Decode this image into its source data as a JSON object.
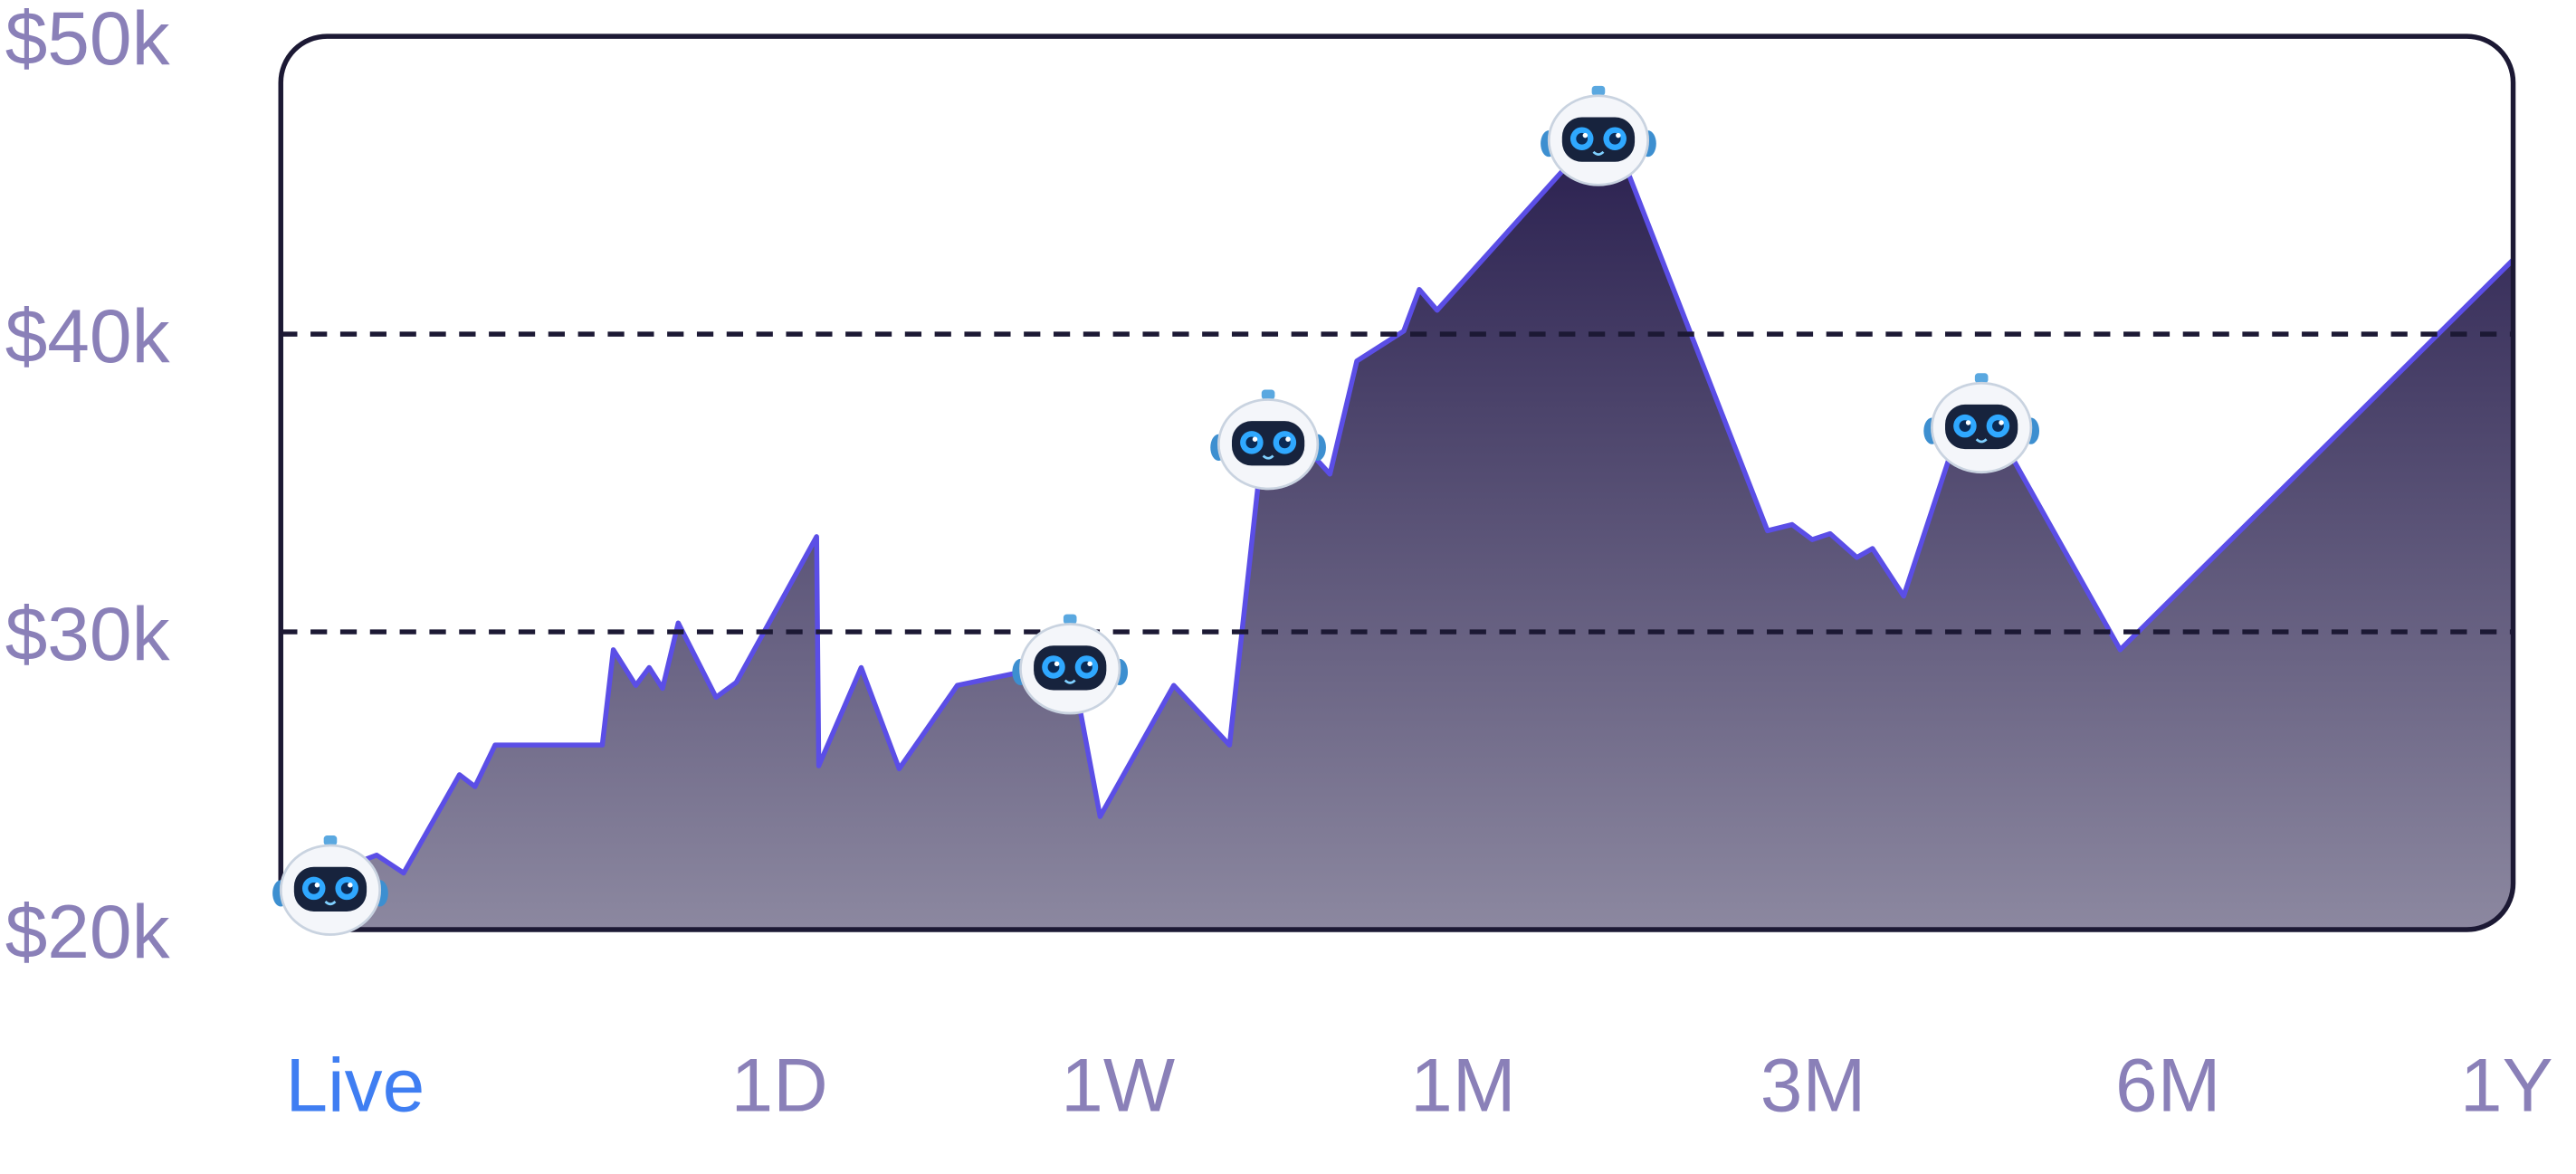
{
  "chart_data": {
    "type": "area",
    "x": [
      0,
      4.3,
      5.5,
      8.0,
      8.7,
      9.6,
      14.4,
      14.9,
      15.9,
      16.5,
      17.1,
      17.8,
      19.5,
      20.4,
      24.0,
      24.1,
      26.0,
      27.7,
      30.3,
      35.4,
      36.7,
      40.0,
      42.5,
      43.8,
      45.9,
      47.0,
      48.2,
      50.3,
      51.0,
      51.8,
      58.4,
      59.9,
      66.6,
      67.7,
      68.6,
      69.4,
      70.6,
      71.3,
      72.7,
      74.9,
      77.3,
      82.4,
      100
    ],
    "values": [
      21300,
      22500,
      21900,
      25200,
      24800,
      26200,
      26200,
      29400,
      28200,
      28800,
      28100,
      30300,
      27800,
      28300,
      33200,
      25500,
      28800,
      25400,
      28200,
      29000,
      23800,
      28200,
      26200,
      35100,
      36200,
      35300,
      39100,
      40100,
      41500,
      40800,
      46300,
      46300,
      33400,
      33600,
      33100,
      33300,
      32500,
      32800,
      31200,
      36200,
      36200,
      29400,
      42500
    ],
    "xlim": [
      0,
      100
    ],
    "ylim": [
      20000,
      50000
    ],
    "yticks": [
      {
        "value": 20000,
        "label": "$20k"
      },
      {
        "value": 30000,
        "label": "$30k"
      },
      {
        "value": 40000,
        "label": "$40k"
      },
      {
        "value": 50000,
        "label": "$50k"
      }
    ],
    "grid": true,
    "color": "#5b4ee6",
    "fill_top": "#2b2150",
    "fill_bottom": "#8c88a0",
    "ranges": [
      "Live",
      "1D",
      "1W",
      "1M",
      "3M",
      "6M",
      "1Y"
    ],
    "selected_range": "Live",
    "range_color": "#8a80b8",
    "selected_color": "#3f7ef2"
  }
}
